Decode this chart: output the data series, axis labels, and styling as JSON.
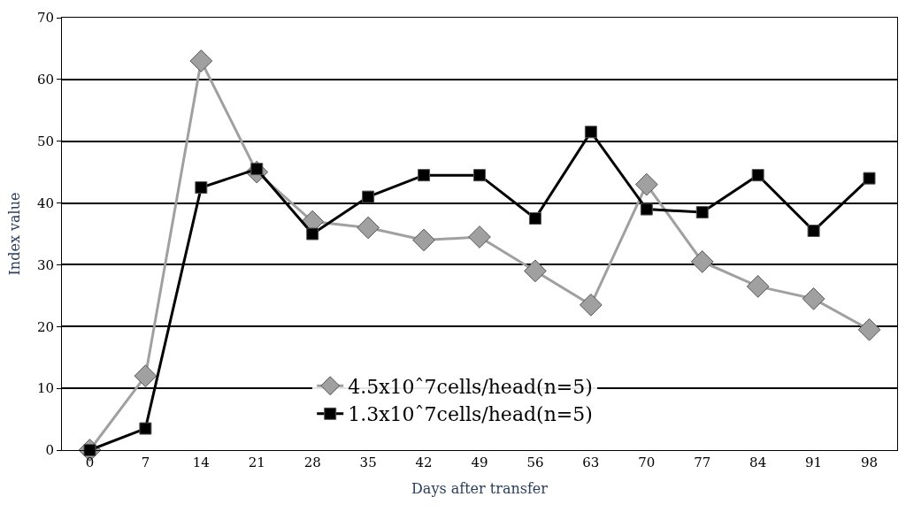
{
  "chart_data": {
    "type": "line",
    "xlabel": "Days after transfer",
    "ylabel": "Index value",
    "categories": [
      "0",
      "7",
      "14",
      "21",
      "28",
      "35",
      "42",
      "49",
      "56",
      "63",
      "70",
      "77",
      "84",
      "91",
      "98"
    ],
    "ylim": [
      0,
      70
    ],
    "yticks": [
      0,
      10,
      20,
      30,
      40,
      50,
      60,
      70
    ],
    "grid": "y",
    "legend": "bottom",
    "line_style": "solid",
    "series": [
      {
        "name": "4.5x10ˆ7cells/head(n=5)",
        "color": "#a0a0a0",
        "marker": "diamond",
        "values": [
          0,
          12,
          63,
          45,
          37,
          36,
          34,
          34.5,
          29,
          23.5,
          43,
          30.5,
          26.5,
          24.5,
          19.5
        ]
      },
      {
        "name": "1.3x10ˆ7cells/head(n=5)",
        "color": "#000000",
        "marker": "square",
        "values": [
          0,
          3.5,
          42.5,
          45.5,
          35,
          41,
          44.5,
          44.5,
          37.5,
          51.5,
          39,
          38.5,
          44.5,
          35.5,
          44
        ]
      }
    ]
  }
}
